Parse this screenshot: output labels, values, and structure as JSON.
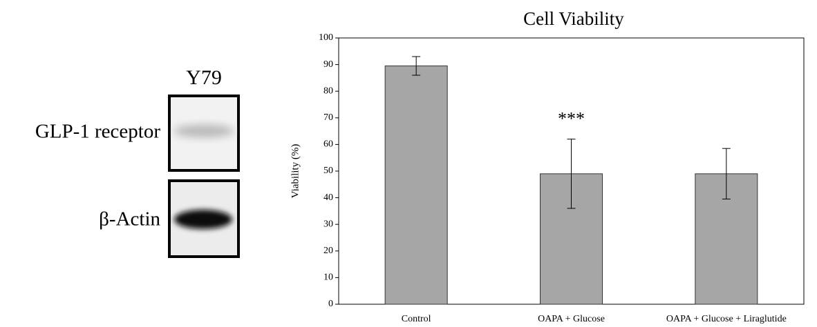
{
  "blot": {
    "cell_line": "Y79",
    "bands": [
      "GLP-1 receptor",
      "β-Actin"
    ]
  },
  "chart_data": {
    "type": "bar",
    "title": "Cell Viability",
    "y_label": "Viability (%)",
    "categories": [
      "Control",
      "OAPA + Glucose",
      "OAPA + Glucose + Liraglutide"
    ],
    "values": [
      89.5,
      49,
      49
    ],
    "errors": [
      3.5,
      13,
      9.5
    ],
    "color": "#a6a6a6",
    "annotations": [
      "",
      "***",
      ""
    ],
    "ylim": [
      0,
      100
    ],
    "yticks": [
      0,
      10,
      20,
      30,
      40,
      50,
      60,
      70,
      80,
      90,
      100
    ]
  }
}
